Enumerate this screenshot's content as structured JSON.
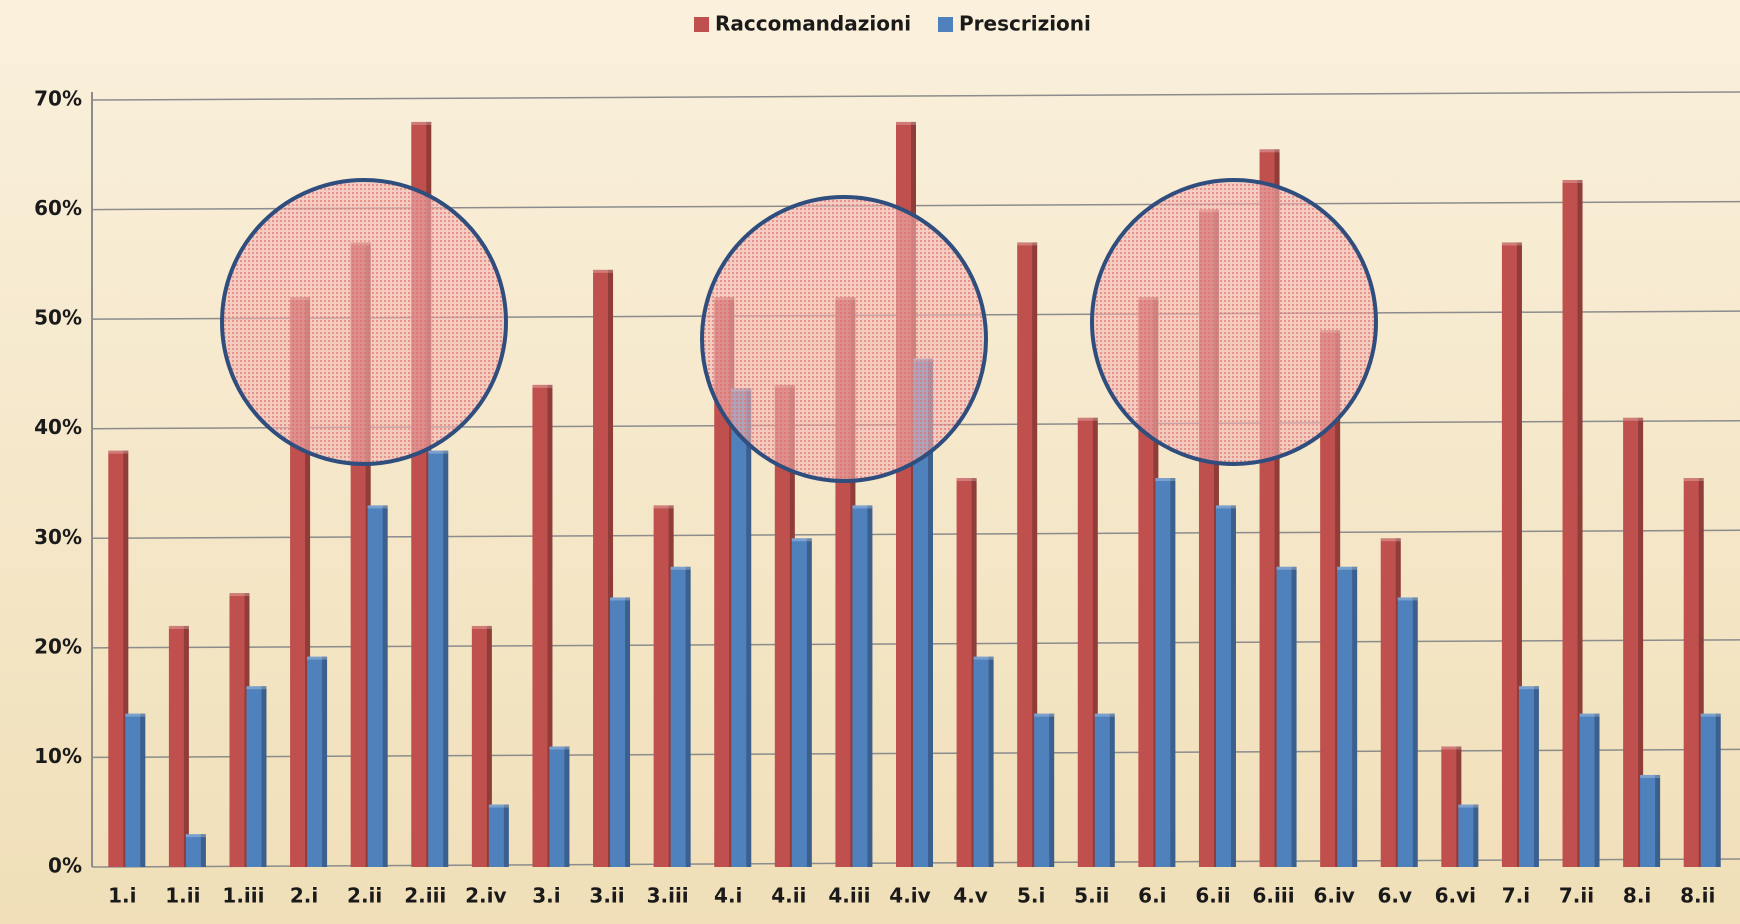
{
  "chart_data": {
    "type": "bar",
    "categories": [
      "1.i",
      "1.ii",
      "1.iii",
      "2.i",
      "2.ii",
      "2.iii",
      "2.iv",
      "3.i",
      "3.ii",
      "3.iii",
      "4.i",
      "4.ii",
      "4.iii",
      "4.iv",
      "4.v",
      "5.i",
      "5.ii",
      "6.i",
      "6.ii",
      "6.iii",
      "6.iv",
      "6.v",
      "6.vi",
      "7.i",
      "7.ii",
      "8.i",
      "8.ii"
    ],
    "series": [
      {
        "name": "Raccomandazioni",
        "color": "#c0504d",
        "values": [
          38,
          22,
          25,
          52,
          57,
          68,
          22,
          44,
          54.5,
          33,
          52,
          44,
          52,
          68,
          35.5,
          57,
          41,
          52,
          60,
          65.5,
          49,
          30,
          11,
          57,
          62.7,
          41,
          35.5
        ]
      },
      {
        "name": "Prescrizioni",
        "color": "#4f81bd",
        "values": [
          14,
          3,
          16.5,
          19.2,
          33,
          38,
          5.7,
          11,
          24.6,
          27.4,
          43.7,
          30,
          33,
          46.4,
          19.2,
          14,
          14,
          35.5,
          33,
          27.4,
          27.4,
          24.6,
          5.7,
          16.5,
          14,
          8.4,
          14
        ]
      }
    ],
    "ylim": [
      0,
      70
    ],
    "yticks": [
      {
        "value": 0,
        "label": "0%"
      },
      {
        "value": 10,
        "label": "10%"
      },
      {
        "value": 20,
        "label": "20%"
      },
      {
        "value": 30,
        "label": "30%"
      },
      {
        "value": 40,
        "label": "40%"
      },
      {
        "value": 50,
        "label": "50%"
      },
      {
        "value": 60,
        "label": "60%"
      },
      {
        "value": 70,
        "label": "70%"
      }
    ],
    "grid": true
  }
}
